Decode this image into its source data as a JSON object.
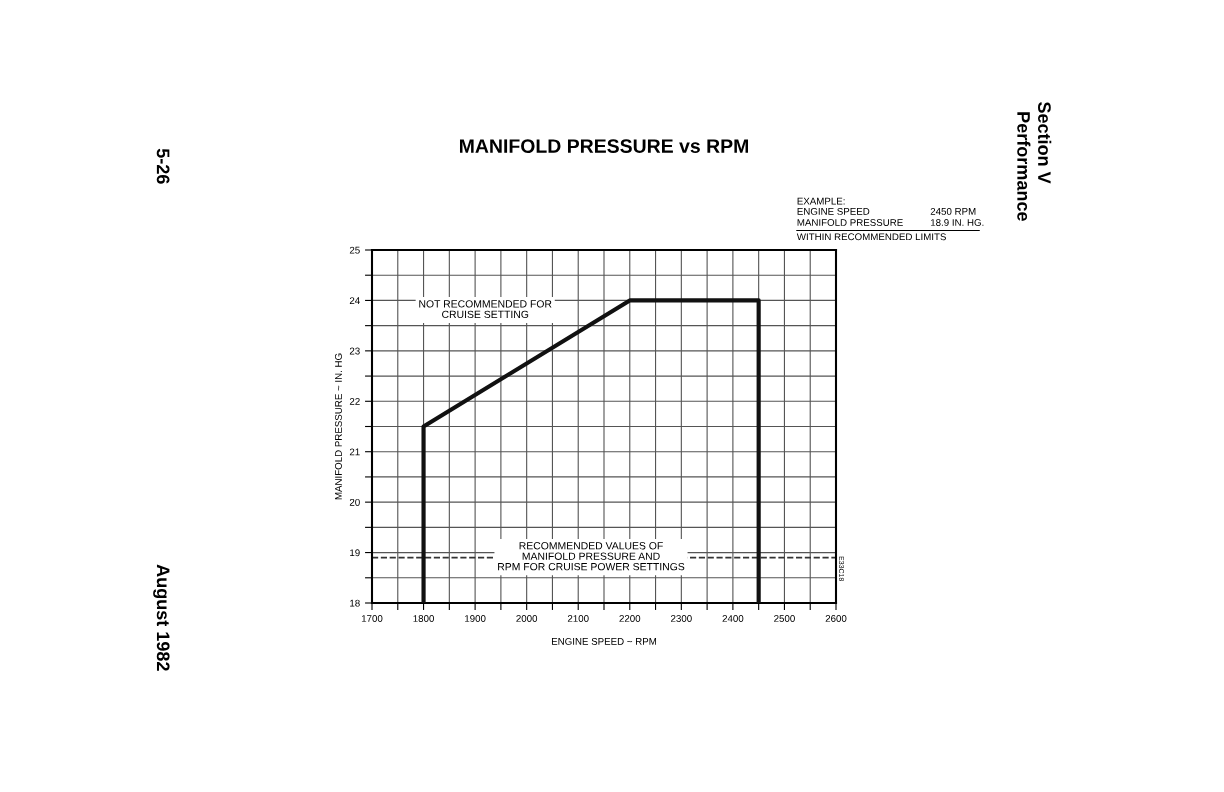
{
  "chart_data": {
    "type": "line",
    "title": "MANIFOLD PRESSURE vs RPM",
    "xlabel": "ENGINE SPEED ~ RPM",
    "ylabel": "MANIFOLD PRESSURE ~ IN. HG",
    "series": [
      {
        "color": "#111111",
        "x": [
          1800,
          1800,
          2200,
          2450,
          2450
        ],
        "values": [
          18,
          21.5,
          24,
          24,
          18
        ]
      }
    ],
    "xlim": [
      1700,
      2600
    ],
    "ylim": [
      18,
      25
    ],
    "xticks": [
      1700,
      {
        "value": 1750,
        "label": null
      },
      1800,
      {
        "value": 1850,
        "label": null
      },
      1900,
      {
        "value": 1950,
        "label": null
      },
      2000,
      {
        "value": 2050,
        "label": null
      },
      2100,
      {
        "value": 2150,
        "label": null
      },
      2200,
      {
        "value": 2250,
        "label": null
      },
      2300,
      {
        "value": 2350,
        "label": null
      },
      2400,
      {
        "value": 2450,
        "label": null
      },
      2500,
      {
        "value": 2550,
        "label": null
      },
      2600
    ],
    "yticks": [
      18,
      {
        "value": 18.5,
        "label": null
      },
      19,
      {
        "value": 19.5,
        "label": null
      },
      20,
      {
        "value": 20.5,
        "label": null
      },
      21,
      {
        "value": 21.5,
        "label": null
      },
      22,
      {
        "value": 22.5,
        "label": null
      },
      23,
      {
        "value": 23.5,
        "label": null
      },
      24,
      {
        "value": 24.5,
        "label": null
      },
      25
    ],
    "ref_lines": [
      {
        "axis": "y",
        "value": 18.9,
        "color": "#333333",
        "line_style": "dashed"
      }
    ],
    "grid": true,
    "marker": "none",
    "line_style": "solid",
    "annotations": [
      "NOT RECOMMENDED FOR\nCRUISE SETTING",
      "RECOMMENDED VALUES OF\nMANIFOLD PRESSURE AND\nRPM FOR CRUISE POWER SETTINGS",
      "EXAMPLE:",
      "ENGINE SPEED",
      "2450 RPM",
      "MANIFOLD PRESSURE",
      "18.9 IN. HG.",
      "WITHIN RECOMMENDED LIMITS",
      "E33C18",
      "5-26",
      "August 1982",
      "Section V",
      "Performance"
    ]
  }
}
